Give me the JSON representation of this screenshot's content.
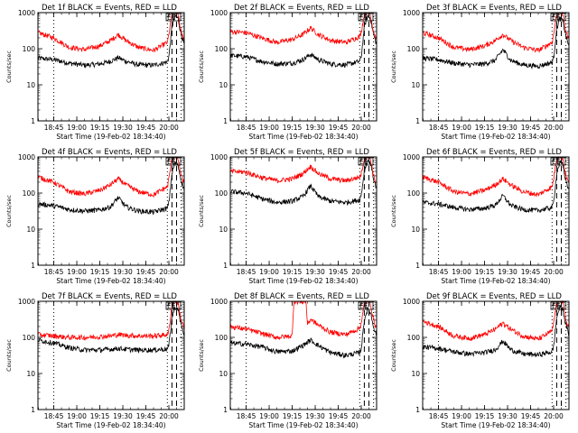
{
  "chart_data": {
    "type": "line",
    "grid": false,
    "y_scale": "log",
    "ylim": [
      1,
      1000
    ],
    "yticks": [
      1,
      10,
      100,
      1000
    ],
    "ytick_labels": [
      "1",
      "10",
      "100",
      "1000"
    ],
    "ylabel": "Counts/sec",
    "xlabel": "Start Time (19-Feb-02 18:34:40)",
    "xlim": [
      "18:34:40",
      "20:10:00"
    ],
    "xticks": [
      "18:45",
      "19:00",
      "19:15",
      "19:30",
      "19:45",
      "20:00"
    ],
    "x_minutes_of_ticks_in_data_order": [
      10.33,
      25.33,
      40.33,
      55.33,
      70.33,
      85.33
    ],
    "panels": [
      {
        "title": "Det 1f BLACK = Events, RED = LLD",
        "annotation": "EE",
        "series": [
          {
            "color": "#000000",
            "x": [
              "18:34:40",
              "18:45",
              "18:55",
              "19:05",
              "19:15",
              "19:22",
              "19:27",
              "19:32",
              "19:40",
              "19:50",
              "19:59",
              "20:00",
              "20:02",
              "20:04",
              "20:06",
              "20:08",
              "20:10"
            ],
            "y": [
              55,
              50,
              40,
              35,
              38,
              45,
              57,
              45,
              36,
              35,
              43,
              60,
              400,
              800,
              700,
              250,
              130
            ]
          },
          {
            "color": "#ff0000",
            "x": [
              "18:34:40",
              "18:45",
              "18:55",
              "19:05",
              "19:15",
              "19:22",
              "19:27",
              "19:32",
              "19:40",
              "19:50",
              "19:59",
              "20:00",
              "20:02",
              "20:04",
              "20:06",
              "20:08",
              "20:10"
            ],
            "y": [
              280,
              200,
              110,
              95,
              120,
              170,
              250,
              170,
              110,
              90,
              150,
              250,
              900,
              1200,
              900,
              300,
              180
            ]
          }
        ]
      },
      {
        "title": "Det 2f BLACK = Events, RED = LLD",
        "annotation": "EE",
        "series": [
          {
            "color": "#000000",
            "x": [
              "18:34:40",
              "18:45",
              "18:55",
              "19:05",
              "19:15",
              "19:22",
              "19:27",
              "19:32",
              "19:40",
              "19:50",
              "19:59",
              "20:00",
              "20:02",
              "20:04",
              "20:06",
              "20:08",
              "20:10"
            ],
            "y": [
              65,
              60,
              45,
              38,
              40,
              50,
              70,
              50,
              38,
              36,
              45,
              60,
              400,
              800,
              700,
              250,
              130
            ]
          },
          {
            "color": "#ff0000",
            "x": [
              "18:34:40",
              "18:45",
              "18:55",
              "19:05",
              "19:15",
              "19:22",
              "19:27",
              "19:32",
              "19:40",
              "19:50",
              "19:59",
              "20:00",
              "20:02",
              "20:04",
              "20:06",
              "20:08",
              "20:10"
            ],
            "y": [
              300,
              280,
              200,
              150,
              180,
              250,
              380,
              250,
              170,
              150,
              220,
              300,
              900,
              1200,
              900,
              300,
              180
            ]
          }
        ]
      },
      {
        "title": "Det 3f BLACK = Events, RED = LLD",
        "annotation": "EE",
        "series": [
          {
            "color": "#000000",
            "x": [
              "18:34:40",
              "18:45",
              "18:55",
              "19:05",
              "19:15",
              "19:22",
              "19:27",
              "19:32",
              "19:40",
              "19:50",
              "19:59",
              "20:00",
              "20:02",
              "20:04",
              "20:06",
              "20:08",
              "20:10"
            ],
            "y": [
              55,
              50,
              40,
              36,
              38,
              48,
              95,
              48,
              36,
              33,
              42,
              55,
              350,
              700,
              600,
              220,
              120
            ]
          },
          {
            "color": "#ff0000",
            "x": [
              "18:34:40",
              "18:45",
              "18:55",
              "19:05",
              "19:15",
              "19:22",
              "19:27",
              "19:32",
              "19:40",
              "19:50",
              "19:59",
              "20:00",
              "20:02",
              "20:04",
              "20:06",
              "20:08",
              "20:10"
            ],
            "y": [
              280,
              200,
              110,
              95,
              120,
              170,
              250,
              170,
              110,
              90,
              150,
              250,
              900,
              1200,
              900,
              300,
              180
            ]
          }
        ]
      },
      {
        "title": "Det 4f BLACK = Events, RED = LLD",
        "annotation": "EE",
        "series": [
          {
            "color": "#000000",
            "x": [
              "18:34:40",
              "18:45",
              "18:55",
              "19:05",
              "19:15",
              "19:22",
              "19:27",
              "19:32",
              "19:40",
              "19:50",
              "19:59",
              "20:00",
              "20:02",
              "20:04",
              "20:06",
              "20:08",
              "20:10"
            ],
            "y": [
              50,
              45,
              35,
              32,
              34,
              42,
              75,
              42,
              32,
              30,
              38,
              55,
              350,
              700,
              600,
              220,
              120
            ]
          },
          {
            "color": "#ff0000",
            "x": [
              "18:34:40",
              "18:45",
              "18:55",
              "19:05",
              "19:15",
              "19:22",
              "19:27",
              "19:32",
              "19:40",
              "19:50",
              "19:59",
              "20:00",
              "20:02",
              "20:04",
              "20:06",
              "20:08",
              "20:10"
            ],
            "y": [
              280,
              200,
              110,
              95,
              120,
              170,
              250,
              170,
              110,
              90,
              150,
              250,
              900,
              1200,
              900,
              300,
              180
            ]
          }
        ]
      },
      {
        "title": "Det 5f BLACK = Events, RED = LLD",
        "annotation": "EE",
        "series": [
          {
            "color": "#000000",
            "x": [
              "18:34:40",
              "18:45",
              "18:55",
              "19:05",
              "19:15",
              "19:22",
              "19:27",
              "19:32",
              "19:40",
              "19:50",
              "19:59",
              "20:00",
              "20:02",
              "20:04",
              "20:06",
              "20:08",
              "20:10"
            ],
            "y": [
              110,
              100,
              70,
              55,
              60,
              80,
              160,
              80,
              60,
              55,
              65,
              90,
              400,
              800,
              700,
              250,
              130
            ]
          },
          {
            "color": "#ff0000",
            "x": [
              "18:34:40",
              "18:45",
              "18:55",
              "19:05",
              "19:15",
              "19:22",
              "19:27",
              "19:32",
              "19:40",
              "19:50",
              "19:59",
              "20:00",
              "20:02",
              "20:04",
              "20:06",
              "20:08",
              "20:10"
            ],
            "y": [
              400,
              380,
              270,
              220,
              250,
              350,
              550,
              350,
              250,
              220,
              280,
              350,
              900,
              1200,
              900,
              300,
              180
            ]
          }
        ]
      },
      {
        "title": "Det 6f BLACK = Events, RED = LLD",
        "annotation": "EE",
        "series": [
          {
            "color": "#000000",
            "x": [
              "18:34:40",
              "18:45",
              "18:55",
              "19:05",
              "19:15",
              "19:22",
              "19:27",
              "19:32",
              "19:40",
              "19:50",
              "19:59",
              "20:00",
              "20:02",
              "20:04",
              "20:06",
              "20:08",
              "20:10"
            ],
            "y": [
              55,
              50,
              40,
              35,
              38,
              46,
              85,
              46,
              35,
              33,
              40,
              55,
              350,
              700,
              600,
              220,
              120
            ]
          },
          {
            "color": "#ff0000",
            "x": [
              "18:34:40",
              "18:45",
              "18:55",
              "19:05",
              "19:15",
              "19:22",
              "19:27",
              "19:32",
              "19:40",
              "19:50",
              "19:59",
              "20:00",
              "20:02",
              "20:04",
              "20:06",
              "20:08",
              "20:10"
            ],
            "y": [
              280,
              200,
              110,
              95,
              120,
              170,
              250,
              170,
              110,
              90,
              150,
              250,
              900,
              1200,
              900,
              300,
              180
            ]
          }
        ]
      },
      {
        "title": "Det 7f BLACK = Events, RED = LLD",
        "annotation": "EE",
        "series": [
          {
            "color": "#000000",
            "x": [
              "18:34:40",
              "18:45",
              "18:55",
              "19:05",
              "19:15",
              "19:22",
              "19:27",
              "19:32",
              "19:40",
              "19:50",
              "19:59",
              "20:00",
              "20:02",
              "20:04",
              "20:06",
              "20:08",
              "20:10"
            ],
            "y": [
              85,
              70,
              52,
              45,
              45,
              47,
              50,
              47,
              45,
              45,
              48,
              60,
              350,
              700,
              600,
              220,
              120
            ]
          },
          {
            "color": "#ff0000",
            "x": [
              "18:34:40",
              "18:45",
              "18:55",
              "19:05",
              "19:15",
              "19:22",
              "19:27",
              "19:32",
              "19:40",
              "19:50",
              "19:59",
              "20:00",
              "20:02",
              "20:04",
              "20:06",
              "20:08",
              "20:10"
            ],
            "y": [
              120,
              110,
              100,
              100,
              105,
              110,
              120,
              115,
              110,
              110,
              120,
              150,
              800,
              1100,
              900,
              300,
              180
            ]
          }
        ]
      },
      {
        "title": "Det 8f BLACK = Events, RED = LLD",
        "annotation": "EE",
        "series": [
          {
            "color": "#000000",
            "x": [
              "18:34:40",
              "18:45",
              "18:55",
              "19:05",
              "19:15",
              "19:22",
              "19:27",
              "19:32",
              "19:40",
              "19:50",
              "19:59",
              "20:00",
              "20:02",
              "20:04",
              "20:06",
              "20:08",
              "20:10"
            ],
            "y": [
              70,
              65,
              55,
              40,
              42,
              60,
              85,
              60,
              38,
              32,
              38,
              50,
              300,
              600,
              500,
              200,
              110
            ]
          },
          {
            "color": "#ff0000",
            "x": [
              "18:34:40",
              "18:45",
              "18:55",
              "19:05",
              "19:15",
              "19:16",
              "19:24",
              "19:25",
              "19:27",
              "19:32",
              "19:40",
              "19:50",
              "19:59",
              "20:00",
              "20:02",
              "20:04",
              "20:06",
              "20:08",
              "20:10"
            ],
            "y": [
              200,
              170,
              130,
              100,
              110,
              1000,
              1000,
              230,
              320,
              220,
              140,
              120,
              180,
              250,
              850,
              1100,
              900,
              300,
              180
            ]
          }
        ]
      },
      {
        "title": "Det 9f BLACK = Events, RED = LLD",
        "annotation": "EE",
        "series": [
          {
            "color": "#000000",
            "x": [
              "18:34:40",
              "18:45",
              "18:55",
              "19:05",
              "19:15",
              "19:22",
              "19:27",
              "19:32",
              "19:40",
              "19:50",
              "19:59",
              "20:00",
              "20:02",
              "20:04",
              "20:06",
              "20:08",
              "20:10"
            ],
            "y": [
              55,
              50,
              40,
              35,
              38,
              46,
              80,
              46,
              35,
              33,
              40,
              55,
              350,
              700,
              600,
              220,
              120
            ]
          },
          {
            "color": "#ff0000",
            "x": [
              "18:34:40",
              "18:45",
              "18:55",
              "19:05",
              "19:15",
              "19:22",
              "19:27",
              "19:32",
              "19:40",
              "19:50",
              "19:59",
              "20:00",
              "20:02",
              "20:04",
              "20:06",
              "20:08",
              "20:10"
            ],
            "y": [
              280,
              200,
              110,
              95,
              120,
              170,
              250,
              170,
              110,
              90,
              150,
              250,
              900,
              1200,
              900,
              300,
              180
            ]
          }
        ]
      }
    ],
    "markers": [
      {
        "x": "18:45",
        "style": "dotted",
        "color": "#000000"
      },
      {
        "x": "19:59",
        "style": "dotted",
        "color": "#000000"
      },
      {
        "x": "20:02",
        "style": "dashed",
        "color": "#000000"
      },
      {
        "x": "20:05",
        "style": "dashed",
        "color": "#000000"
      },
      {
        "x": "20:08",
        "style": "dotted",
        "color": "#000000"
      }
    ]
  }
}
